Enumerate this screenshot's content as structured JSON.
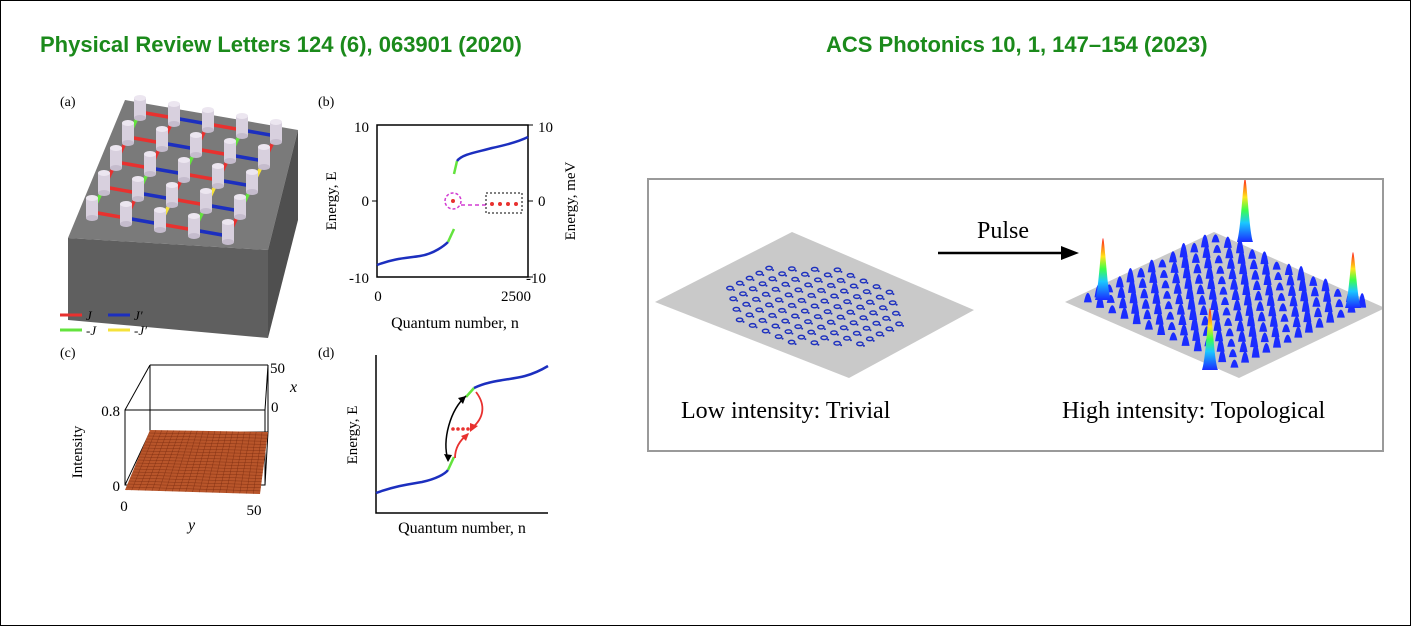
{
  "references": {
    "left": "Physical Review Letters 124 (6), 063901 (2020)",
    "right": "ACS Photonics 10, 1, 147–154 (2023)"
  },
  "panel_a": {
    "label": "(a)",
    "legend": [
      {
        "text": "J",
        "color": "#e8312f"
      },
      {
        "text": "J′",
        "color": "#1c2fbf"
      },
      {
        "text": "-J",
        "color": "#63e33d"
      },
      {
        "text": "-J′",
        "color": "#f5e23a"
      }
    ]
  },
  "panel_b": {
    "label": "(b)",
    "ylabel": "Energy, E",
    "ylabel_right": "Energy, meV",
    "xlabel": "Quantum number, n",
    "yticks": [
      "10",
      "0",
      "-10"
    ],
    "yticks_right": [
      "10",
      "0",
      "-10"
    ],
    "xticks": [
      "0",
      "2500"
    ]
  },
  "panel_c": {
    "label": "(c)",
    "zlabel": "Intensity",
    "xlabel": "x",
    "ylabel": "y",
    "zticks": [
      "0.8",
      "0"
    ],
    "xticks": [
      "50",
      "0"
    ],
    "yticks": [
      "0",
      "50"
    ]
  },
  "panel_d": {
    "label": "(d)",
    "ylabel": "Energy, E",
    "xlabel": "Quantum number, n"
  },
  "right_panel": {
    "arrow_label": "Pulse",
    "caption_left": "Low intensity: Trivial",
    "caption_right": "High intensity: Topological"
  },
  "colors": {
    "reference_green": "#1b8a1b",
    "curve_blue": "#1c2fbf",
    "edge_green": "#63e33d",
    "corner_red": "#e8312f",
    "circle_magenta": "#d23cd2",
    "intensity_orange": "#b8552a"
  }
}
